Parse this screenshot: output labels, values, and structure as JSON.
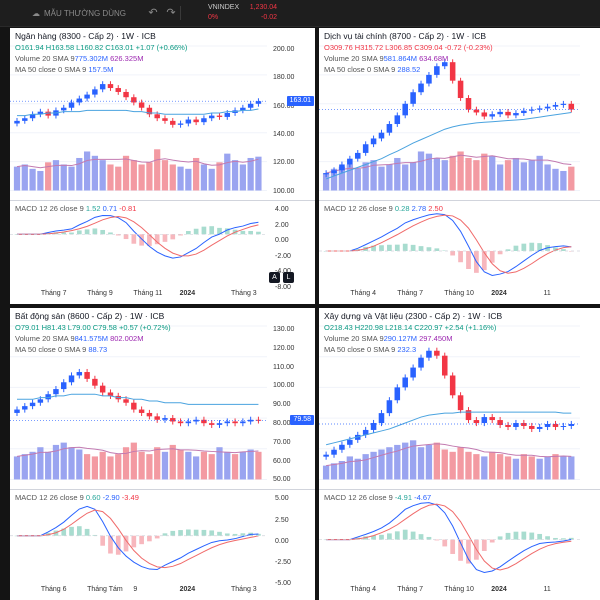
{
  "topbar": {
    "layout_label": "MẪU THƯỜNG DÙNG",
    "ticker": {
      "symbol": "VNINDEX",
      "price": "1,230.04",
      "pct": "0%",
      "change": "-0.02"
    }
  },
  "panels": [
    {
      "id": "bank",
      "legend": {
        "title": "Ngân hàng (8300 - Cấp 2) · 1W · ICB",
        "open": "O161.94",
        "high": "H163.58",
        "low": "L160.82",
        "close": "C163.01",
        "chg": "+1.07 (+0.66%)",
        "chg_dir": "up",
        "volume_label": "Volume 20 SMA 9",
        "vol1": "775.302M",
        "vol2": "626.325M",
        "ma_label": "MA 50 close 0 SMA 9",
        "ma_val": "157.5M",
        "macd_label": "MACD 12 26 close 9",
        "macd1": "1.52",
        "macd2": "0.71",
        "macd3": "-0.81"
      },
      "price_ticks": [
        "200.00",
        "180.00",
        "160.00",
        "140.00",
        "120.00",
        "100.00"
      ],
      "price_box": "163.01",
      "price_box_dir": "up",
      "macd_ticks": [
        "4.00",
        "2.00",
        "0.00",
        "-2.00",
        "-4.00",
        "-8.00"
      ],
      "x_labels": [
        "Tháng 7",
        "Tháng 9",
        "Tháng 11",
        "2024",
        "Tháng 3"
      ],
      "year_index": 3,
      "show_al": true,
      "chart_data": {
        "type": "candlestick",
        "close": [
          148,
          150,
          153,
          155,
          152,
          156,
          158,
          162,
          165,
          168,
          172,
          176,
          173,
          170,
          166,
          162,
          158,
          153,
          150,
          148,
          145,
          146,
          149,
          147,
          150,
          152,
          151,
          154,
          156,
          158,
          161,
          163
        ],
        "volume": [
          0.55,
          0.6,
          0.5,
          0.45,
          0.65,
          0.7,
          0.6,
          0.55,
          0.75,
          0.9,
          0.8,
          0.7,
          0.6,
          0.55,
          0.8,
          0.7,
          0.6,
          0.65,
          0.95,
          0.7,
          0.6,
          0.55,
          0.5,
          0.75,
          0.6,
          0.5,
          0.65,
          0.85,
          0.7,
          0.6,
          0.75,
          0.78
        ],
        "ylim": [
          95,
          205
        ],
        "ma": [
          152,
          152,
          153,
          153,
          154,
          154,
          155,
          155,
          155,
          156,
          156,
          156,
          156,
          156,
          156,
          155,
          155,
          154,
          154,
          153,
          153,
          153,
          153,
          153,
          153,
          154,
          154,
          155,
          155,
          156,
          156,
          157
        ],
        "macd_range": [
          -8,
          5
        ]
      }
    },
    {
      "id": "fin",
      "legend": {
        "title": "Dịch vụ tài chính (8700 - Cấp 2) · 1W · ICB",
        "open": "O309.76",
        "high": "H315.72",
        "low": "L306.85",
        "close": "C309.04",
        "chg": "-0.72 (-0.23%)",
        "chg_dir": "down",
        "volume_label": "Volume 20 SMA 9",
        "vol1": "581.864M",
        "vol2": "634.68M",
        "ma_label": "MA 50 close 0 SMA 9",
        "ma_val": "288.52",
        "macd_label": "MACD 12 26 close 9",
        "macd1": "0.28",
        "macd2": "2.78",
        "macd3": "2.50"
      },
      "price_ticks": [],
      "price_box": "",
      "price_box_dir": "down",
      "macd_ticks": [],
      "x_labels": [
        "Tháng 4",
        "Tháng 7",
        "Tháng 10",
        "2024",
        "11"
      ],
      "year_index": 3,
      "show_al": false,
      "chart_data": {
        "type": "candlestick",
        "close": [
          200,
          205,
          215,
          225,
          235,
          250,
          260,
          270,
          285,
          300,
          320,
          340,
          355,
          370,
          385,
          392,
          360,
          330,
          310,
          305,
          298,
          302,
          306,
          300,
          304,
          308,
          310,
          312,
          315,
          318,
          320,
          310
        ],
        "volume": [
          0.4,
          0.5,
          0.55,
          0.6,
          0.5,
          0.65,
          0.7,
          0.55,
          0.6,
          0.75,
          0.6,
          0.65,
          0.9,
          0.85,
          0.75,
          0.7,
          0.8,
          0.9,
          0.75,
          0.7,
          0.85,
          0.8,
          0.6,
          0.7,
          0.75,
          0.65,
          0.7,
          0.8,
          0.6,
          0.5,
          0.45,
          0.55
        ],
        "ylim": [
          170,
          420
        ],
        "ma": [
          190,
          195,
          200,
          205,
          210,
          215,
          220,
          225,
          232,
          238,
          245,
          252,
          258,
          264,
          270,
          276,
          280,
          283,
          285,
          287,
          288,
          289,
          290,
          291,
          292,
          293,
          295,
          297,
          299,
          301,
          303,
          305
        ],
        "macd_range": [
          -8,
          12
        ]
      }
    },
    {
      "id": "realestate",
      "legend": {
        "title": "Bất động sản (8600 - Cấp 2) · 1W · ICB",
        "open": "O79.01",
        "high": "H81.43",
        "low": "L79.00",
        "close": "C79.58",
        "chg": "+0.57 (+0.72%)",
        "chg_dir": "up",
        "volume_label": "Volume 20 SMA 9",
        "vol1": "841.575M",
        "vol2": "802.002M",
        "ma_label": "MA 50 close 0 SMA 9",
        "ma_val": "88.73",
        "macd_label": "MACD 12 26 close 9",
        "macd1": "0.60",
        "macd2": "-2.90",
        "macd3": "-3.49"
      },
      "price_ticks": [
        "130.00",
        "120.00",
        "110.00",
        "100.00",
        "90.00",
        "80.00",
        "70.00",
        "60.00",
        "50.00"
      ],
      "price_box": "79.58",
      "price_box_dir": "up",
      "macd_ticks": [
        "5.00",
        "2.50",
        "0.00",
        "-2.50",
        "-5.00"
      ],
      "x_labels": [
        "Tháng 6",
        "Tháng Tám",
        "9",
        "2024",
        "Tháng 3"
      ],
      "year_index": 3,
      "show_al": false,
      "chart_data": {
        "type": "candlestick",
        "close": [
          86,
          88,
          90,
          92,
          95,
          98,
          102,
          106,
          108,
          104,
          100,
          96,
          94,
          92,
          90,
          86,
          84,
          82,
          80,
          81,
          79,
          78,
          79,
          80,
          78,
          77,
          78,
          79,
          78,
          79,
          80,
          79.6
        ],
        "volume": [
          0.5,
          0.55,
          0.6,
          0.7,
          0.6,
          0.75,
          0.8,
          0.7,
          0.65,
          0.55,
          0.5,
          0.6,
          0.5,
          0.55,
          0.7,
          0.8,
          0.6,
          0.55,
          0.7,
          0.6,
          0.75,
          0.65,
          0.6,
          0.5,
          0.6,
          0.55,
          0.7,
          0.6,
          0.55,
          0.6,
          0.65,
          0.6
        ],
        "ylim": [
          45,
          135
        ],
        "ma": [
          92,
          92,
          92,
          93,
          93,
          94,
          94,
          95,
          95,
          95,
          95,
          94,
          94,
          93,
          93,
          92,
          92,
          91,
          91,
          90,
          90,
          90,
          89,
          89,
          89,
          89,
          89,
          89,
          89,
          89,
          89,
          89
        ],
        "macd_range": [
          -6,
          6
        ]
      }
    },
    {
      "id": "construction",
      "legend": {
        "title": "Xây dựng và Vật liệu (2300 - Cấp 2) · 1W · ICB",
        "open": "O218.43",
        "high": "H220.98",
        "low": "L218.14",
        "close": "C220.97",
        "chg": "+2.54 (+1.16%)",
        "chg_dir": "up",
        "volume_label": "Volume 20 SMA 9",
        "vol1": "290.127M",
        "vol2": "297.450M",
        "ma_label": "MA 50 close 0 SMA 9",
        "ma_val": "232.3",
        "macd_label": "MACD 12 26 close 9",
        "macd1": "-4.91",
        "macd2": "-4.67",
        "macd3": ""
      },
      "price_ticks": [],
      "price_box": "",
      "price_box_dir": "up",
      "macd_ticks": [],
      "x_labels": [
        "Tháng 4",
        "Tháng 7",
        "Tháng 10",
        "2024",
        "11"
      ],
      "year_index": 3,
      "show_al": false,
      "chart_data": {
        "type": "candlestick",
        "close": [
          190,
          195,
          200,
          205,
          210,
          215,
          222,
          232,
          245,
          258,
          268,
          278,
          288,
          295,
          290,
          270,
          250,
          235,
          225,
          222,
          228,
          225,
          220,
          218,
          222,
          219,
          216,
          218,
          221,
          218,
          219,
          221
        ],
        "volume": [
          0.3,
          0.35,
          0.4,
          0.5,
          0.45,
          0.55,
          0.6,
          0.65,
          0.7,
          0.75,
          0.8,
          0.85,
          0.7,
          0.75,
          0.8,
          0.65,
          0.6,
          0.7,
          0.6,
          0.55,
          0.5,
          0.6,
          0.55,
          0.5,
          0.45,
          0.55,
          0.5,
          0.45,
          0.5,
          0.55,
          0.5,
          0.5
        ],
        "ylim": [
          165,
          320
        ],
        "ma": [
          200,
          202,
          204,
          206,
          208,
          210,
          212,
          214,
          216,
          219,
          222,
          225,
          228,
          230,
          231,
          232,
          232,
          233,
          233,
          233,
          233,
          233,
          233,
          233,
          233,
          233,
          233,
          233,
          233,
          233,
          232,
          232
        ],
        "macd_range": [
          -10,
          12
        ]
      }
    }
  ]
}
